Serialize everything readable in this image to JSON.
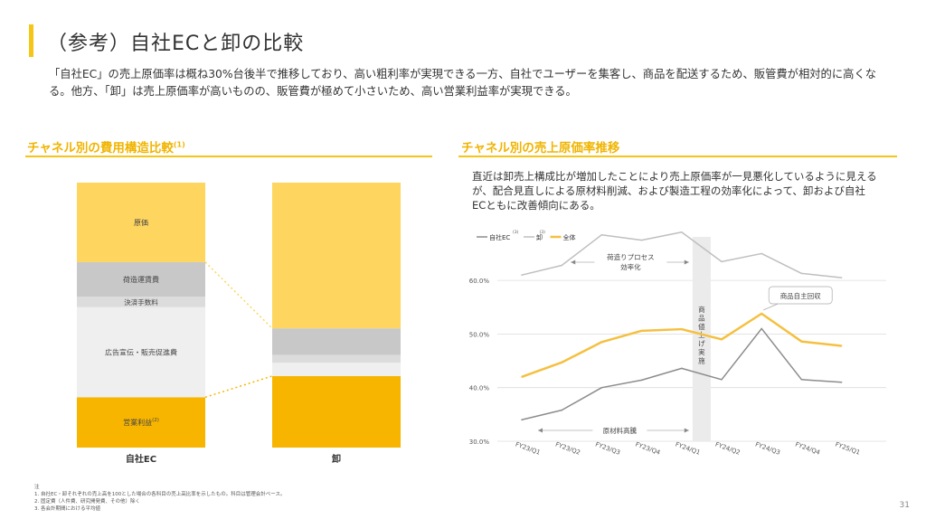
{
  "title": "（参考）自社ECと卸の比較",
  "description": "「自社EC」の売上原価率は概ね30%台後半で推移しており、高い粗利率が実現できる一方、自社でユーザーを集客し、商品を配送するため、販管費が相対的に高くなる。他方、「卸」は売上原価率が高いものの、販管費が極めて小さいため、高い営業利益率が実現できる。",
  "left_section": {
    "title": "チャネル別の費用構造比較",
    "title_sup": "(1)"
  },
  "right_section": {
    "title": "チャネル別の売上原価率推移",
    "description": "直近は卸売上構成比が増加したことにより売上原価率が一見悪化しているように見えるが、配合見直しによる原材料削減、および製造工程の効率化によって、卸および自社ECともに改善傾向にある。"
  },
  "colors": {
    "accent": "#f5c518",
    "cost": "#fdd55f",
    "shipping": "#c8c8c8",
    "payment": "#dcdcdc",
    "advertising": "#efefef",
    "operating_profit": "#f7b500",
    "ec_line": "#8c8c8c",
    "wholesale_line": "#bfbfbf",
    "total_line": "#f5c040",
    "section_title": "#f0b400"
  },
  "chart_data": [
    {
      "type": "bar",
      "stacked": true,
      "categories": [
        "自社EC",
        "卸"
      ],
      "segments": [
        {
          "name": "営業利益",
          "sup": "(2)",
          "values": [
            19,
            27
          ]
        },
        {
          "name": "広告宣伝・販売促進費",
          "values": [
            34,
            5
          ]
        },
        {
          "name": "決済手数料",
          "values": [
            4,
            3
          ]
        },
        {
          "name": "荷造運賃費",
          "values": [
            13,
            10
          ]
        },
        {
          "name": "原価",
          "values": [
            30,
            55
          ]
        }
      ],
      "ylim": [
        0,
        100
      ]
    },
    {
      "type": "line",
      "x": [
        "FY23/Q1",
        "FY23/Q2",
        "FY23/Q3",
        "FY23/Q4",
        "FY24/Q1",
        "FY24/Q2",
        "FY24/Q3",
        "FY24/Q4",
        "FY25/Q1"
      ],
      "series": [
        {
          "name": "自社EC",
          "sup": "(3)",
          "values": [
            34.0,
            35.8,
            40.0,
            41.4,
            43.6,
            41.5,
            51.0,
            41.5,
            41.0
          ]
        },
        {
          "name": "卸",
          "sup": "(3)",
          "values": [
            61.0,
            62.8,
            68.5,
            67.5,
            69.0,
            63.5,
            65.0,
            61.3,
            60.5
          ]
        },
        {
          "name": "全体",
          "values": [
            42.0,
            44.7,
            48.5,
            50.6,
            50.9,
            49.0,
            53.8,
            48.6,
            47.8
          ]
        }
      ],
      "yticks": [
        "30.0%",
        "40.0%",
        "50.0%",
        "60.0%"
      ],
      "ylim": [
        30,
        70
      ],
      "grid": true,
      "legend": "top-left",
      "annotations": {
        "process": "荷造りプロセス効率化",
        "price_up": "商品値上げ実施",
        "recall": "商品自主回収",
        "material": "原材料高騰"
      }
    }
  ],
  "notes": [
    "注",
    "1.  自社EC・卸それぞれの売上高を100とした場合の各科目の売上高比率を示したもの。科目は管理会計ベース。",
    "2.  固定費（人件費、研究開発費、その他）除く",
    "3.  各会計期間における平均値"
  ],
  "page_number": "31"
}
